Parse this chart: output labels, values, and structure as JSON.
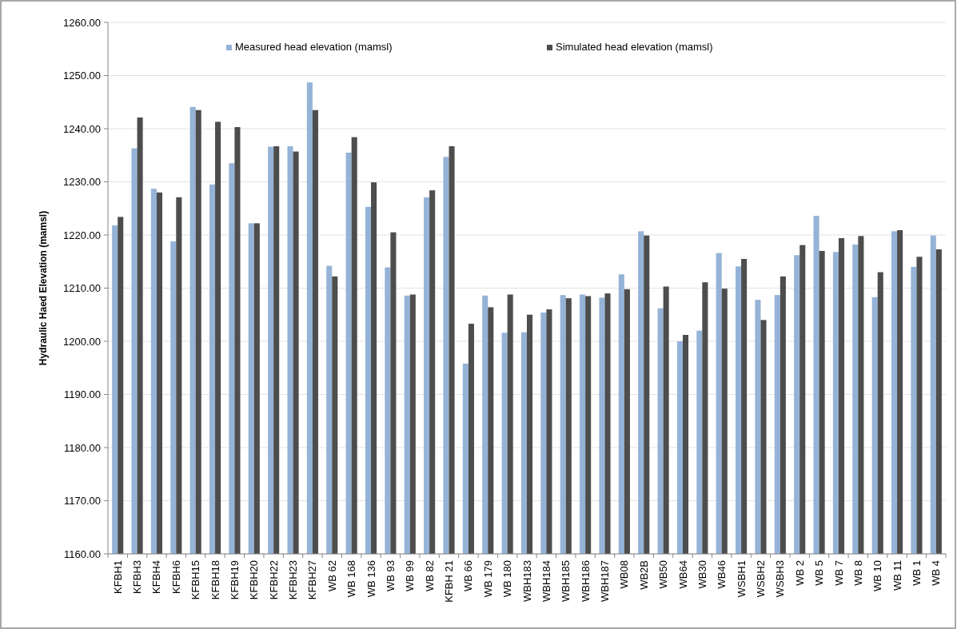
{
  "chart_data": {
    "type": "bar",
    "ylabel": "Hydraulic Haed Elevation (mamsl)",
    "categories": [
      "KFBH1",
      "KFBH3",
      "KFBH4",
      "KFBH6",
      "KFBH15",
      "KFBH18",
      "KFBH19",
      "KFBH20",
      "KFBH22",
      "KFBH23",
      "KFBH27",
      "WB 62",
      "WB 168",
      "WB 136",
      "WB 93",
      "WB 99",
      "WB 82",
      "KFBH 21",
      "WB 66",
      "WB 179",
      "WB 180",
      "WBH183",
      "WBH184",
      "WBH185",
      "WBH186",
      "WBH187",
      "WB08",
      "WB2B",
      "WB50",
      "WB64",
      "WB30",
      "WB46",
      "WSBH1",
      "WSBH2",
      "WSBH3",
      "WB 2",
      "WB 5",
      "WB 7",
      "WB 8",
      "WB 10",
      "WB 11",
      "WB 1",
      "WB 4"
    ],
    "series": [
      {
        "name": "Measured head elevation (mamsl)",
        "color": "#95b3d7",
        "values": [
          1221.8,
          1236.3,
          1228.7,
          1218.8,
          1244.1,
          1229.5,
          1233.5,
          1222.2,
          1236.6,
          1236.7,
          1248.7,
          1214.2,
          1235.5,
          1225.3,
          1213.9,
          1208.6,
          1227.1,
          1234.7,
          1195.8,
          1208.6,
          1201.6,
          1201.7,
          1205.4,
          1208.7,
          1208.8,
          1208.2,
          1212.6,
          1220.7,
          1206.2,
          1200.0,
          1202.0,
          1216.6,
          1214.1,
          1207.8,
          1208.7,
          1216.2,
          1223.6,
          1216.8,
          1218.2,
          1208.3,
          1220.7,
          1214.0,
          1219.9
        ]
      },
      {
        "name": "Simulated head elevation (mamsl)",
        "color": "#4d4d4d",
        "values": [
          1223.4,
          1242.1,
          1228.0,
          1227.1,
          1243.5,
          1241.3,
          1240.3,
          1222.2,
          1236.7,
          1235.7,
          1243.5,
          1212.2,
          1238.4,
          1229.9,
          1220.5,
          1208.8,
          1228.4,
          1236.7,
          1203.3,
          1206.4,
          1208.8,
          1205.0,
          1206.0,
          1208.1,
          1208.5,
          1209.0,
          1209.8,
          1219.9,
          1210.3,
          1201.2,
          1211.1,
          1209.9,
          1215.5,
          1204.0,
          1212.2,
          1218.1,
          1217.0,
          1219.4,
          1219.8,
          1213.0,
          1220.9,
          1215.9,
          1217.3
        ]
      }
    ],
    "ylim": [
      1160,
      1260
    ],
    "yticks": [
      {
        "value": 1160,
        "label": "1160.00"
      },
      {
        "value": 1170,
        "label": "1170.00"
      },
      {
        "value": 1180,
        "label": "1180.00"
      },
      {
        "value": 1190,
        "label": "1190.00"
      },
      {
        "value": 1200,
        "label": "1200.00"
      },
      {
        "value": 1210,
        "label": "1210.00"
      },
      {
        "value": 1220,
        "label": "1220.00"
      },
      {
        "value": 1230,
        "label": "1230.00"
      },
      {
        "value": 1240,
        "label": "1240.00"
      },
      {
        "value": 1250,
        "label": "1250.00"
      },
      {
        "value": 1260,
        "label": "1260.00"
      }
    ],
    "grid": "y",
    "legend": "top"
  }
}
